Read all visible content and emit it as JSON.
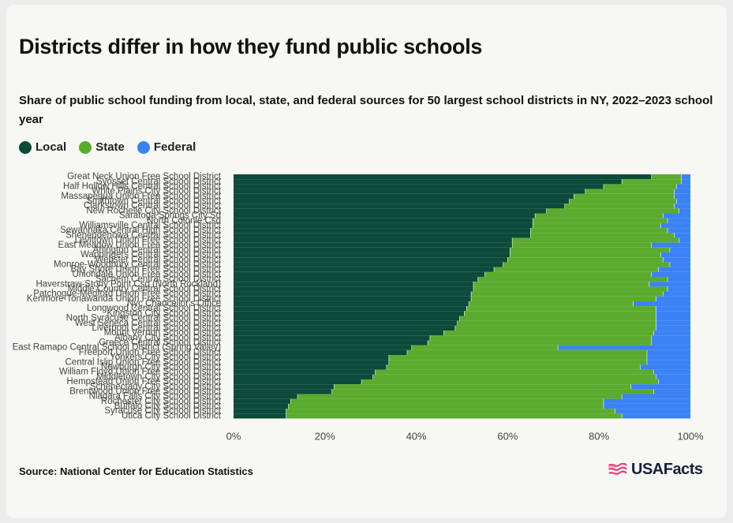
{
  "title": "Districts differ in how they fund public schools",
  "subtitle": "Share of public school funding from local, state, and federal sources for 50 largest school districts in NY, 2022–2023 school year",
  "legend": [
    {
      "label": "Local",
      "color": "#0c4a3a"
    },
    {
      "label": "State",
      "color": "#5bab2e"
    },
    {
      "label": "Federal",
      "color": "#3b82f6"
    }
  ],
  "source": "Source: National Center for Education Statistics",
  "logo": {
    "text": "USAFacts",
    "icon": "flag-icon"
  },
  "chart_data": {
    "type": "bar",
    "orientation": "horizontal",
    "stacked": true,
    "xlim": [
      0,
      100
    ],
    "x_ticks": [
      "0%",
      "20%",
      "40%",
      "60%",
      "80%",
      "100%"
    ],
    "categories": [
      "Great Neck Union Free School District",
      "Syosset Central School District",
      "Half Hollow Hills Central School District",
      "White Plains City School District",
      "Massapequa Union Free School District",
      "Smithtown Central School District",
      "Clarkstown Central School District",
      "New Rochelle City School District",
      "Saratoga Springs City Sd",
      "North Colonie Csd",
      "Williamsville Central School District",
      "Sewanhaka Central High School District",
      "Shenendehowa Central School District",
      "Levittown Union Free School District",
      "East Meadow Union Free School District",
      "Arlington Central School District",
      "Wappingers Central School District",
      "Webster Central School District",
      "Monroe-Woodbury Central School District",
      "Bay Shore Union Free School District",
      "Uniondale Union Free School District",
      "Sachem Central School District",
      "Haverstraw-Stony Point Csd (North Rockland)",
      "Middle Country Central School District",
      "Patchogue-Medford Union Free School District",
      "Kenmore-Tonawanda Union Free School District",
      "Nyc Chancellor's Office",
      "Longwood Central School District",
      "Kingston City School District",
      "North Syracuse Central School District",
      "West Seneca Central School District",
      "Liverpool Central School District",
      "Mount Vernon School District",
      "Albany City School District",
      "Greece Central School District",
      "East Ramapo Central School District (Spring Valley)",
      "Freeport Union Free School District",
      "Yonkers City School District",
      "Central Islip Union Free School District",
      "Newburgh City School District",
      "William Floyd Union Free School District",
      "Middletown City School District",
      "Hempstead Union Free School District",
      "Schenectady City School District",
      "Brentwood Union Free School District",
      "Niagara Falls City School District",
      "Rochester City School District",
      "Buffalo City School District",
      "Syracuse City School District",
      "Utica City School District"
    ],
    "series": [
      {
        "name": "Local",
        "values": [
          91.5,
          85.0,
          81.0,
          77.0,
          74.5,
          73.5,
          72.5,
          68.5,
          66.0,
          65.5,
          65.5,
          65.0,
          65.0,
          61.0,
          61.0,
          60.5,
          60.5,
          60.0,
          59.0,
          57.0,
          55.0,
          53.5,
          52.5,
          52.5,
          52.0,
          52.0,
          51.5,
          51.0,
          50.5,
          49.5,
          49.0,
          48.5,
          46.0,
          43.0,
          42.5,
          39.0,
          38.0,
          34.0,
          34.0,
          33.5,
          31.0,
          30.5,
          28.0,
          22.0,
          21.5,
          14.0,
          12.5,
          12.0,
          11.5,
          11.5
        ]
      },
      {
        "name": "State",
        "values": [
          6.5,
          13.0,
          16.0,
          19.5,
          22.0,
          23.5,
          24.0,
          29.0,
          28.0,
          29.5,
          28.0,
          30.0,
          31.5,
          36.5,
          30.5,
          35.0,
          33.0,
          34.0,
          36.5,
          36.0,
          36.5,
          41.5,
          38.5,
          42.5,
          42.0,
          40.5,
          36.0,
          41.5,
          42.0,
          43.0,
          43.5,
          44.0,
          46.0,
          48.5,
          49.0,
          32.0,
          52.5,
          56.5,
          56.5,
          55.5,
          61.0,
          62.0,
          65.0,
          65.0,
          70.5,
          71.0,
          68.5,
          69.0,
          72.0,
          73.5
        ]
      },
      {
        "name": "Federal",
        "values": [
          2.0,
          2.0,
          3.0,
          3.5,
          3.5,
          3.0,
          3.5,
          2.5,
          6.0,
          5.0,
          6.5,
          5.0,
          3.5,
          2.5,
          8.5,
          4.5,
          6.5,
          6.0,
          4.5,
          7.0,
          8.5,
          5.0,
          9.0,
          5.0,
          6.0,
          7.5,
          12.5,
          7.5,
          7.5,
          7.5,
          7.5,
          7.5,
          8.0,
          8.5,
          8.5,
          29.0,
          9.5,
          9.5,
          9.5,
          11.0,
          8.0,
          7.5,
          7.0,
          13.0,
          8.0,
          15.0,
          19.0,
          19.0,
          16.5,
          15.0
        ]
      }
    ]
  }
}
